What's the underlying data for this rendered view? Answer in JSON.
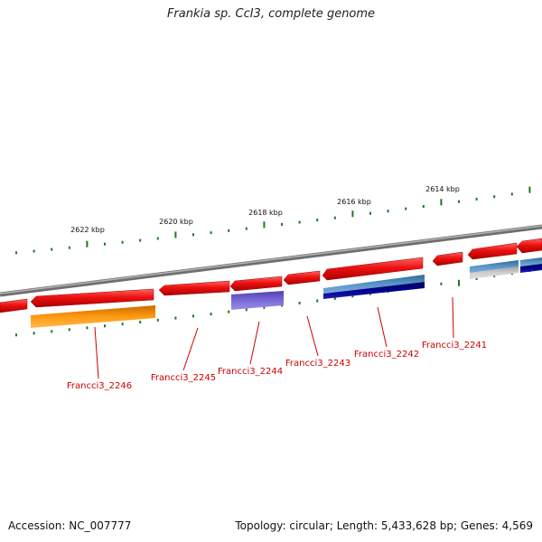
{
  "title": "Frankia sp. CcI3, complete genome",
  "footer": {
    "accession": "Accession: NC_007777",
    "summary": "Topology: circular; Length: 5,433,628 bp; Genes: 4,569"
  },
  "scale_labels": [
    "2622 kbp",
    "2620 kbp",
    "2618 kbp",
    "2616 kbp",
    "2614 kbp"
  ],
  "gene_labels": [
    "Francci3_2246",
    "Francci3_2245",
    "Francci3_2244",
    "Francci3_2243",
    "Francci3_2242",
    "Francci3_2241"
  ],
  "colors": {
    "cds": "#ee1111",
    "backbone": "#8a8a8a",
    "ticks": "#1a7a1a",
    "labels": "#cc0000",
    "feature_orange": "#ff8c00",
    "feature_purple": "#6a5acd",
    "feature_steelblue": "#4682b4",
    "feature_navy": "#000080",
    "feature_silver": "#b8b8b8"
  }
}
